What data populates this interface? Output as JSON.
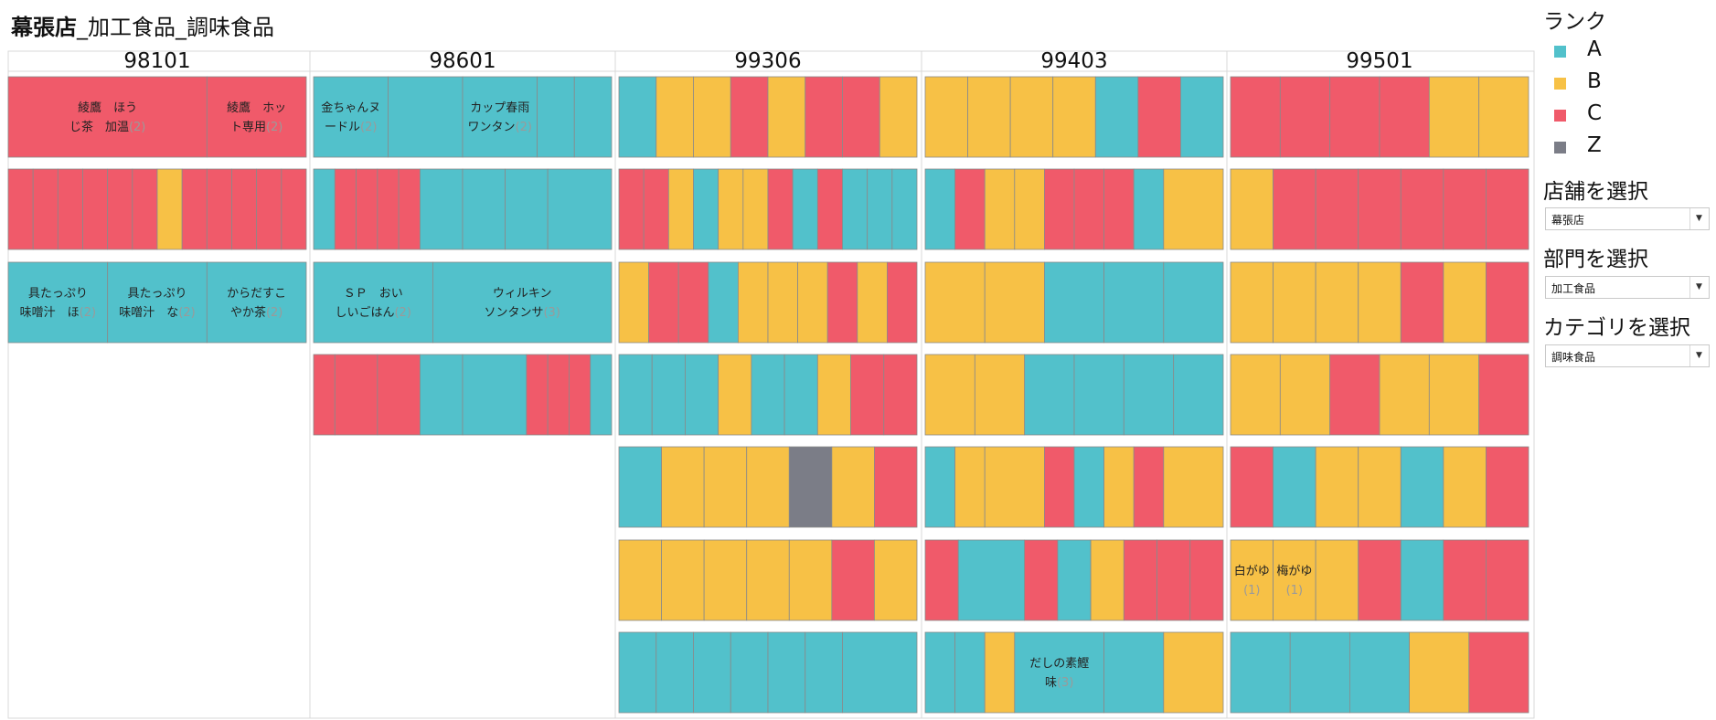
{
  "title": {
    "store": "幕張店",
    "rest": "_加工食品_調味食品"
  },
  "sidebar": {
    "legend_title": "ランク",
    "store_filter": {
      "label": "店舗を選択",
      "value": "幕張店"
    },
    "dept_filter": {
      "label": "部門を選択",
      "value": "加工食品"
    },
    "category_filter": {
      "label": "カテゴリを選択",
      "value": "調味食品"
    }
  },
  "chart_data": {
    "type": "treemap-grid",
    "legend": [
      {
        "rank": "A",
        "color": "#52C1CB"
      },
      {
        "rank": "B",
        "color": "#F7C146"
      },
      {
        "rank": "C",
        "color": "#F05A6A"
      },
      {
        "rank": "Z",
        "color": "#7B7D87"
      }
    ],
    "columns": [
      {
        "header": "98101",
        "rows": [
          [
            {
              "r": "C",
              "w": 2,
              "l1": "綾鷹　ほう",
              "l2": "じ茶　加温",
              "n": "(2)"
            },
            {
              "r": "C",
              "w": 1,
              "l1": "綾鷹　ホッ",
              "l2": "ト専用",
              "n": "(2)"
            }
          ],
          [
            {
              "r": "C",
              "w": 1
            },
            {
              "r": "C",
              "w": 1
            },
            {
              "r": "C",
              "w": 1
            },
            {
              "r": "C",
              "w": 1
            },
            {
              "r": "C",
              "w": 1
            },
            {
              "r": "C",
              "w": 1
            },
            {
              "r": "B",
              "w": 1
            },
            {
              "r": "C",
              "w": 1
            },
            {
              "r": "C",
              "w": 1
            },
            {
              "r": "C",
              "w": 1
            },
            {
              "r": "C",
              "w": 1
            },
            {
              "r": "C",
              "w": 1
            }
          ],
          [
            {
              "r": "A",
              "w": 1,
              "l1": "具たっぷり",
              "l2": "味噌汁　ほ",
              "n": "(2)"
            },
            {
              "r": "A",
              "w": 1,
              "l1": "具たっぷり",
              "l2": "味噌汁　な",
              "n": "(2)"
            },
            {
              "r": "A",
              "w": 1,
              "l1": "からだすこ",
              "l2": "やか茶",
              "n": "(2)"
            }
          ]
        ]
      },
      {
        "header": "98601",
        "rows": [
          [
            {
              "r": "A",
              "w": 1,
              "l1": "金ちゃんヌ",
              "l2": "ードル",
              "n": "(2)"
            },
            {
              "r": "A",
              "w": 1
            },
            {
              "r": "A",
              "w": 1,
              "l1": "カップ春雨",
              "l2": "ワンタン",
              "n": "(2)"
            },
            {
              "r": "A",
              "w": 0.5
            },
            {
              "r": "A",
              "w": 0.5
            }
          ],
          [
            {
              "r": "A",
              "w": 1
            },
            {
              "r": "C",
              "w": 1
            },
            {
              "r": "C",
              "w": 1
            },
            {
              "r": "C",
              "w": 1
            },
            {
              "r": "C",
              "w": 1
            },
            {
              "r": "A",
              "w": 2
            },
            {
              "r": "A",
              "w": 2
            },
            {
              "r": "A",
              "w": 2
            },
            {
              "r": "A",
              "w": 3
            }
          ],
          [
            {
              "r": "A",
              "w": 2,
              "l1": "ＳＰ　おい",
              "l2": "しいごはん",
              "n": "(2)"
            },
            {
              "r": "A",
              "w": 3,
              "l1": "ウィルキン",
              "l2": "ソンタンサ",
              "n": "(3)"
            }
          ],
          [
            {
              "r": "C",
              "w": 1
            },
            {
              "r": "C",
              "w": 2
            },
            {
              "r": "C",
              "w": 2
            },
            {
              "r": "A",
              "w": 2
            },
            {
              "r": "A",
              "w": 3
            },
            {
              "r": "C",
              "w": 1
            },
            {
              "r": "C",
              "w": 1
            },
            {
              "r": "C",
              "w": 1
            },
            {
              "r": "A",
              "w": 1
            }
          ]
        ]
      },
      {
        "header": "99306",
        "rows": [
          [
            {
              "r": "A",
              "w": 1
            },
            {
              "r": "B",
              "w": 1
            },
            {
              "r": "B",
              "w": 1
            },
            {
              "r": "C",
              "w": 1
            },
            {
              "r": "B",
              "w": 1
            },
            {
              "r": "C",
              "w": 1
            },
            {
              "r": "C",
              "w": 1
            },
            {
              "r": "B",
              "w": 1
            }
          ],
          [
            {
              "r": "C",
              "w": 1
            },
            {
              "r": "C",
              "w": 1
            },
            {
              "r": "B",
              "w": 1
            },
            {
              "r": "A",
              "w": 1
            },
            {
              "r": "B",
              "w": 1
            },
            {
              "r": "B",
              "w": 1
            },
            {
              "r": "C",
              "w": 1
            },
            {
              "r": "A",
              "w": 1
            },
            {
              "r": "C",
              "w": 1
            },
            {
              "r": "A",
              "w": 1
            },
            {
              "r": "A",
              "w": 1
            },
            {
              "r": "A",
              "w": 1
            }
          ],
          [
            {
              "r": "B",
              "w": 1
            },
            {
              "r": "C",
              "w": 1
            },
            {
              "r": "C",
              "w": 1
            },
            {
              "r": "A",
              "w": 1
            },
            {
              "r": "B",
              "w": 1
            },
            {
              "r": "B",
              "w": 1
            },
            {
              "r": "B",
              "w": 1
            },
            {
              "r": "C",
              "w": 1
            },
            {
              "r": "B",
              "w": 1
            },
            {
              "r": "C",
              "w": 1
            }
          ],
          [
            {
              "r": "A",
              "w": 1
            },
            {
              "r": "A",
              "w": 1
            },
            {
              "r": "A",
              "w": 1
            },
            {
              "r": "B",
              "w": 1
            },
            {
              "r": "A",
              "w": 1
            },
            {
              "r": "A",
              "w": 1
            },
            {
              "r": "B",
              "w": 1
            },
            {
              "r": "C",
              "w": 1
            },
            {
              "r": "C",
              "w": 1
            }
          ],
          [
            {
              "r": "A",
              "w": 1
            },
            {
              "r": "B",
              "w": 1
            },
            {
              "r": "B",
              "w": 1
            },
            {
              "r": "B",
              "w": 1
            },
            {
              "r": "Z",
              "w": 1
            },
            {
              "r": "B",
              "w": 1
            },
            {
              "r": "C",
              "w": 1
            }
          ],
          [
            {
              "r": "B",
              "w": 1
            },
            {
              "r": "B",
              "w": 1
            },
            {
              "r": "B",
              "w": 1
            },
            {
              "r": "B",
              "w": 1
            },
            {
              "r": "B",
              "w": 1
            },
            {
              "r": "C",
              "w": 1
            },
            {
              "r": "B",
              "w": 1
            }
          ],
          [
            {
              "r": "A",
              "w": 1
            },
            {
              "r": "A",
              "w": 1
            },
            {
              "r": "A",
              "w": 1
            },
            {
              "r": "A",
              "w": 1
            },
            {
              "r": "A",
              "w": 1
            },
            {
              "r": "A",
              "w": 1
            },
            {
              "r": "A",
              "w": 2
            }
          ]
        ]
      },
      {
        "header": "99403",
        "rows": [
          [
            {
              "r": "B",
              "w": 1
            },
            {
              "r": "B",
              "w": 1
            },
            {
              "r": "B",
              "w": 1
            },
            {
              "r": "B",
              "w": 1
            },
            {
              "r": "A",
              "w": 1
            },
            {
              "r": "C",
              "w": 1
            },
            {
              "r": "A",
              "w": 1
            }
          ],
          [
            {
              "r": "A",
              "w": 1
            },
            {
              "r": "C",
              "w": 1
            },
            {
              "r": "B",
              "w": 1
            },
            {
              "r": "B",
              "w": 1
            },
            {
              "r": "C",
              "w": 1
            },
            {
              "r": "C",
              "w": 1
            },
            {
              "r": "C",
              "w": 1
            },
            {
              "r": "A",
              "w": 1
            },
            {
              "r": "B",
              "w": 2
            }
          ],
          [
            {
              "r": "B",
              "w": 1
            },
            {
              "r": "B",
              "w": 1
            },
            {
              "r": "A",
              "w": 1
            },
            {
              "r": "A",
              "w": 1
            },
            {
              "r": "A",
              "w": 1
            }
          ],
          [
            {
              "r": "B",
              "w": 1
            },
            {
              "r": "B",
              "w": 1
            },
            {
              "r": "A",
              "w": 1
            },
            {
              "r": "A",
              "w": 1
            },
            {
              "r": "A",
              "w": 1
            },
            {
              "r": "A",
              "w": 1
            }
          ],
          [
            {
              "r": "A",
              "w": 1
            },
            {
              "r": "B",
              "w": 1
            },
            {
              "r": "B",
              "w": 2
            },
            {
              "r": "C",
              "w": 1
            },
            {
              "r": "A",
              "w": 1
            },
            {
              "r": "B",
              "w": 1
            },
            {
              "r": "C",
              "w": 1
            },
            {
              "r": "B",
              "w": 2
            }
          ],
          [
            {
              "r": "C",
              "w": 1
            },
            {
              "r": "A",
              "w": 2
            },
            {
              "r": "C",
              "w": 1
            },
            {
              "r": "A",
              "w": 1
            },
            {
              "r": "B",
              "w": 1
            },
            {
              "r": "C",
              "w": 1
            },
            {
              "r": "C",
              "w": 1
            },
            {
              "r": "C",
              "w": 1
            }
          ],
          [
            {
              "r": "A",
              "w": 1
            },
            {
              "r": "A",
              "w": 1
            },
            {
              "r": "B",
              "w": 1
            },
            {
              "r": "A",
              "w": 3,
              "l1": "だしの素鰹",
              "l2": "味",
              "n": "(3)"
            },
            {
              "r": "A",
              "w": 2
            },
            {
              "r": "B",
              "w": 2
            }
          ]
        ]
      },
      {
        "header": "99501",
        "rows": [
          [
            {
              "r": "C",
              "w": 1
            },
            {
              "r": "C",
              "w": 1
            },
            {
              "r": "C",
              "w": 1
            },
            {
              "r": "C",
              "w": 1
            },
            {
              "r": "B",
              "w": 1
            },
            {
              "r": "B",
              "w": 1
            }
          ],
          [
            {
              "r": "B",
              "w": 1
            },
            {
              "r": "C",
              "w": 1
            },
            {
              "r": "C",
              "w": 1
            },
            {
              "r": "C",
              "w": 1
            },
            {
              "r": "C",
              "w": 1
            },
            {
              "r": "C",
              "w": 1
            },
            {
              "r": "C",
              "w": 1
            }
          ],
          [
            {
              "r": "B",
              "w": 1
            },
            {
              "r": "B",
              "w": 1
            },
            {
              "r": "B",
              "w": 1
            },
            {
              "r": "B",
              "w": 1
            },
            {
              "r": "C",
              "w": 1
            },
            {
              "r": "B",
              "w": 1
            },
            {
              "r": "C",
              "w": 1
            }
          ],
          [
            {
              "r": "B",
              "w": 1
            },
            {
              "r": "B",
              "w": 1
            },
            {
              "r": "C",
              "w": 1
            },
            {
              "r": "B",
              "w": 1
            },
            {
              "r": "B",
              "w": 1
            },
            {
              "r": "C",
              "w": 1
            }
          ],
          [
            {
              "r": "C",
              "w": 1
            },
            {
              "r": "A",
              "w": 1
            },
            {
              "r": "B",
              "w": 1
            },
            {
              "r": "B",
              "w": 1
            },
            {
              "r": "A",
              "w": 1
            },
            {
              "r": "B",
              "w": 1
            },
            {
              "r": "C",
              "w": 1
            }
          ],
          [
            {
              "r": "B",
              "w": 1,
              "l1": "白がゆ",
              "l2": "",
              "n": "(1)"
            },
            {
              "r": "B",
              "w": 1,
              "l1": "梅がゆ",
              "l2": "",
              "n": "(1)"
            },
            {
              "r": "B",
              "w": 1
            },
            {
              "r": "C",
              "w": 1
            },
            {
              "r": "A",
              "w": 1
            },
            {
              "r": "C",
              "w": 1
            },
            {
              "r": "C",
              "w": 1
            }
          ],
          [
            {
              "r": "A",
              "w": 1
            },
            {
              "r": "A",
              "w": 1
            },
            {
              "r": "A",
              "w": 1
            },
            {
              "r": "B",
              "w": 1
            },
            {
              "r": "C",
              "w": 1
            }
          ]
        ]
      }
    ]
  }
}
